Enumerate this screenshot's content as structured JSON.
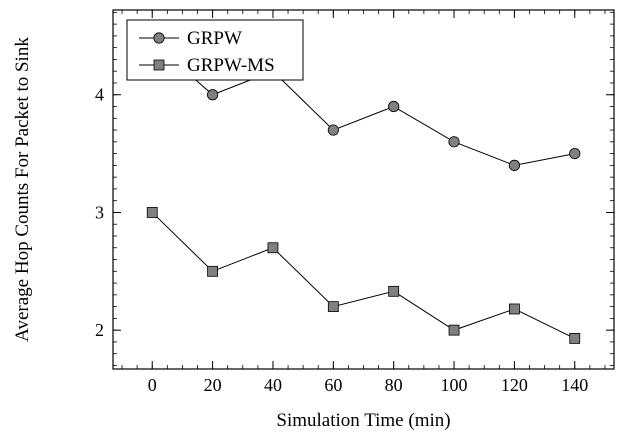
{
  "chart_data": {
    "type": "line",
    "title": "",
    "xlabel": "Simulation Time (min)",
    "ylabel": "Average Hop Counts For Packet to Sink",
    "x": [
      0,
      20,
      40,
      60,
      80,
      100,
      120,
      140
    ],
    "xticks": [
      "0",
      "20",
      "40",
      "60",
      "80",
      "100",
      "120",
      "140"
    ],
    "yticks": [
      "2",
      "3",
      "4"
    ],
    "xlim": [
      -13,
      153
    ],
    "ylim": [
      1.67,
      4.72
    ],
    "grid": false,
    "legend_position": "top-left",
    "series": [
      {
        "name": "GRPW",
        "marker": "circle",
        "color": "#000000",
        "values": [
          4.45,
          4.0,
          4.2,
          3.7,
          3.9,
          3.6,
          3.4,
          3.5
        ]
      },
      {
        "name": "GRPW-MS",
        "marker": "square",
        "color": "#000000",
        "values": [
          3.0,
          2.5,
          2.7,
          2.2,
          2.33,
          2.0,
          2.18,
          1.93
        ]
      }
    ]
  }
}
